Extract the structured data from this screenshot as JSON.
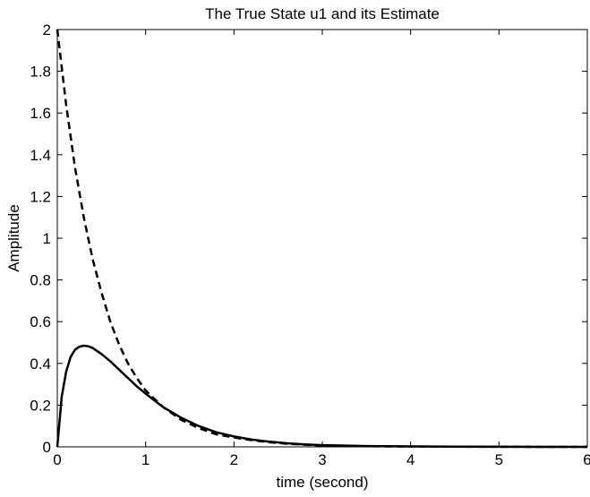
{
  "chart_data": {
    "type": "line",
    "title": "The True State u1 and its Estimate",
    "xlabel": "time (second)",
    "ylabel": "Amplitude",
    "xlim": [
      0,
      6
    ],
    "ylim": [
      0,
      2
    ],
    "xticks": [
      0,
      1,
      2,
      3,
      4,
      5,
      6
    ],
    "yticks": [
      0,
      0.2,
      0.4,
      0.6,
      0.8,
      1,
      1.2,
      1.4,
      1.6,
      1.8,
      2
    ],
    "xtick_labels": [
      "0",
      "1",
      "2",
      "3",
      "4",
      "5",
      "6"
    ],
    "ytick_labels": [
      "0",
      "0.2",
      "0.4",
      "0.6",
      "0.8",
      "1",
      "1.2",
      "1.4",
      "1.6",
      "1.8",
      "2"
    ],
    "grid": false,
    "legend": "none",
    "series": [
      {
        "style": "solid",
        "color": "#000000",
        "x": [
          0,
          0.05,
          0.1,
          0.15,
          0.2,
          0.25,
          0.3,
          0.35,
          0.4,
          0.5,
          0.6,
          0.7,
          0.8,
          0.9,
          1.0,
          1.2,
          1.4,
          1.6,
          1.8,
          2.0,
          2.2,
          2.4,
          2.6,
          2.8,
          3.0,
          3.5,
          4.0,
          4.5,
          5.0,
          5.5,
          6.0
        ],
        "values": [
          0,
          0.24,
          0.36,
          0.43,
          0.465,
          0.48,
          0.485,
          0.482,
          0.474,
          0.445,
          0.41,
          0.37,
          0.33,
          0.29,
          0.255,
          0.19,
          0.14,
          0.1,
          0.07,
          0.05,
          0.035,
          0.025,
          0.017,
          0.012,
          0.008,
          0.004,
          0.002,
          0.001,
          0.0005,
          0.0002,
          0.0001
        ]
      },
      {
        "style": "dashed",
        "color": "#000000",
        "x": [
          0,
          0.1,
          0.2,
          0.3,
          0.4,
          0.5,
          0.6,
          0.7,
          0.8,
          0.9,
          1.0,
          1.2,
          1.4,
          1.6,
          1.8,
          2.0,
          2.2,
          2.4,
          2.6,
          2.8,
          3.0,
          3.5,
          4.0,
          4.5,
          5.0,
          5.5,
          6.0
        ],
        "values": [
          2.0,
          1.64,
          1.34,
          1.1,
          0.9,
          0.74,
          0.6,
          0.49,
          0.4,
          0.33,
          0.27,
          0.19,
          0.13,
          0.09,
          0.06,
          0.045,
          0.032,
          0.022,
          0.015,
          0.01,
          0.007,
          0.003,
          0.0015,
          0.0008,
          0.0004,
          0.0002,
          0.0001
        ]
      }
    ]
  }
}
